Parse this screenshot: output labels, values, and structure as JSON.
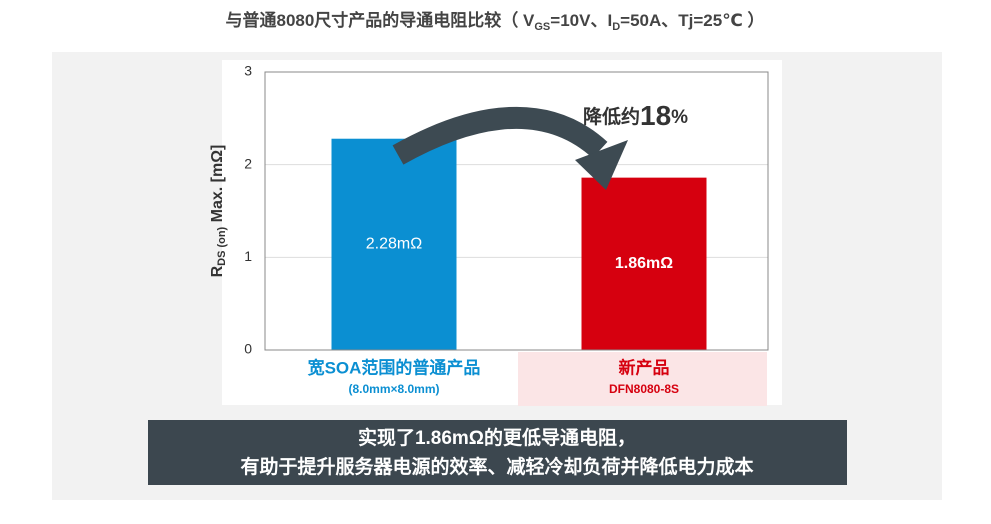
{
  "chart_data": {
    "type": "bar",
    "title": [
      "与普通8080尺寸产品的导通电阻比较（ V",
      "GS",
      "=10V、I",
      "D",
      "=50A、Tj=25℃ ）"
    ],
    "y_label": [
      "R",
      "DS",
      "(on)",
      " Max. [mΩ]"
    ],
    "categories": [
      "宽SOA范围的普通产品",
      "新产品"
    ],
    "category_notes": [
      "(8.0mm×8.0mm)",
      "DFN8080-8S"
    ],
    "values": [
      2.28,
      1.86
    ],
    "value_labels": [
      "2.28mΩ",
      "1.86mΩ"
    ],
    "colors": [
      "#0b8fd2",
      "#d6000f"
    ],
    "ylim": [
      0,
      3
    ],
    "yticks": [
      0,
      1,
      2,
      3
    ],
    "grid": true,
    "annotation": [
      "降低约",
      "18",
      "%"
    ],
    "footer": [
      "实现了1.86mΩ的更低导通电阻，",
      "有助于提升服务器电源的效率、减轻冷却负荷并降低电力成本"
    ]
  }
}
